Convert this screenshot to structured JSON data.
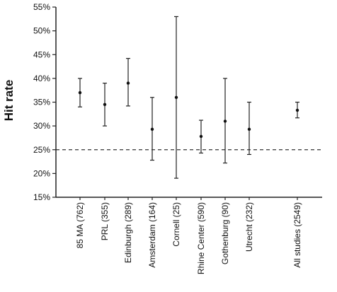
{
  "chart_data": {
    "type": "scatter",
    "subtype": "error-bar",
    "title": "",
    "xlabel": "",
    "ylabel": "Hit rate",
    "ylim": [
      15,
      55
    ],
    "yticks": [
      "15%",
      "20%",
      "25%",
      "30%",
      "35%",
      "40%",
      "45%",
      "50%",
      "55%"
    ],
    "grid": false,
    "reference_line": {
      "value": 25,
      "style": "dashed"
    },
    "categories": [
      "85 MA (762)",
      "PRL (355)",
      "Edinburgh (289)",
      "Amsterdam (164)",
      "Cornell (25)",
      "Rhine Center (590)",
      "Gothenburg (90)",
      "Utrecht (232)",
      "All studies (2549)"
    ],
    "series": [
      {
        "values": [
          37,
          34.5,
          39,
          29.3,
          36,
          27.8,
          31,
          29.3,
          33.3
        ],
        "lower": [
          34,
          30,
          34.2,
          22.8,
          19,
          24.3,
          22.2,
          24,
          31.7
        ],
        "upper": [
          40,
          39,
          44.2,
          36,
          53,
          31.2,
          40,
          35,
          35
        ]
      }
    ]
  }
}
